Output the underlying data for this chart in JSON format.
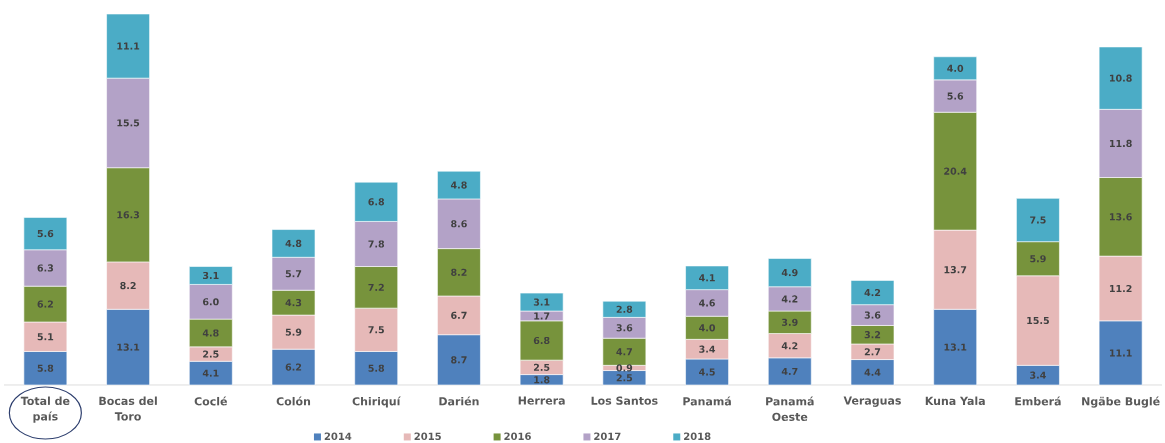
{
  "chart_data": {
    "type": "bar",
    "stacked": true,
    "categories": [
      "Total de país",
      "Bocas del Toro",
      "Coclé",
      "Colón",
      "Chiriquí",
      "Darién",
      "Herrera",
      "Los Santos",
      "Panamá",
      "Panamá Oeste",
      "Veraguas",
      "Kuna Yala",
      "Emberá",
      "Ngäbe Buglé"
    ],
    "series": [
      {
        "name": "2014",
        "color": "#4f81bd",
        "values": [
          5.8,
          13.1,
          4.1,
          6.2,
          5.8,
          8.7,
          1.8,
          2.5,
          4.5,
          4.7,
          4.4,
          13.1,
          3.4,
          11.1
        ],
        "value_labels": [
          "5.8",
          "13.1",
          "4.1",
          "6.2",
          "5.8",
          "8.7",
          "1.8",
          "2.5",
          "4.5",
          "4.7",
          "4.4",
          "13.1",
          "3.4",
          "11.1"
        ]
      },
      {
        "name": "2015",
        "color": "#e6b9b8",
        "values": [
          5.1,
          8.2,
          2.5,
          5.9,
          7.5,
          6.7,
          2.5,
          0.9,
          3.4,
          4.2,
          2.7,
          13.7,
          15.5,
          11.2
        ],
        "value_labels": [
          "5.1",
          "8.2",
          "2.5",
          "5.9",
          "7.5",
          "6.7",
          "2.5",
          "0.9",
          "3.4",
          "4.2",
          "2.7",
          "13.7",
          "15.5",
          "11.2"
        ]
      },
      {
        "name": "2016",
        "color": "#77933c",
        "values": [
          6.2,
          16.3,
          4.8,
          4.3,
          7.2,
          8.2,
          6.8,
          4.7,
          4.0,
          3.9,
          3.2,
          20.4,
          5.9,
          13.6
        ],
        "value_labels": [
          "6.2",
          "16.3",
          "4.8",
          "4.3",
          "7.2",
          "8.2",
          "6.8",
          "4.7",
          "4.0",
          "3.9",
          "3.2",
          "20.4",
          "5.9",
          "13.6"
        ]
      },
      {
        "name": "2017",
        "color": "#b3a2c7",
        "values": [
          6.3,
          15.5,
          6.0,
          5.7,
          7.8,
          8.6,
          1.7,
          3.6,
          4.6,
          4.2,
          3.6,
          5.6,
          null,
          11.8
        ],
        "value_labels": [
          "6.3",
          "15.5",
          "6.0",
          "5.7",
          "7.8",
          "8.6",
          "1.7",
          "3.6",
          "4.6",
          "4.2",
          "3.6",
          "5.6",
          null,
          "11.8"
        ]
      },
      {
        "name": "2018",
        "color": "#4bacc6",
        "values": [
          5.6,
          11.1,
          3.1,
          4.8,
          6.8,
          4.8,
          3.1,
          2.8,
          4.1,
          4.9,
          4.2,
          4.0,
          7.5,
          10.8
        ],
        "value_labels": [
          "5.6",
          "11.1",
          "3.1",
          "4.8",
          "6.8",
          "4.8",
          "3.1",
          "2.8",
          "4.1",
          "4.9",
          "4.2",
          "4.0",
          "7.5",
          "10.8"
        ]
      }
    ],
    "legend": "bottom"
  }
}
